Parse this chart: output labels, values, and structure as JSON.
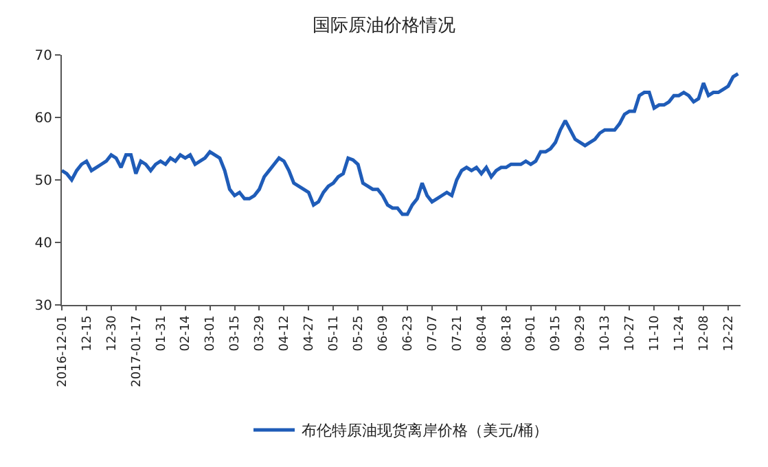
{
  "chart_data": {
    "type": "line",
    "title": "国际原油价格情况",
    "categories": [
      "2016-12-01",
      null,
      null,
      null,
      null,
      "12-15",
      null,
      null,
      null,
      null,
      "12-30",
      null,
      null,
      null,
      null,
      "2017-01-17",
      null,
      null,
      null,
      null,
      "01-31",
      null,
      null,
      null,
      null,
      "02-14",
      null,
      null,
      null,
      null,
      "03-01",
      null,
      null,
      null,
      null,
      "03-15",
      null,
      null,
      null,
      null,
      "03-29",
      null,
      null,
      null,
      null,
      "04-12",
      null,
      null,
      null,
      null,
      "04-27",
      null,
      null,
      null,
      null,
      "05-11",
      null,
      null,
      null,
      null,
      "05-25",
      null,
      null,
      null,
      null,
      "06-09",
      null,
      null,
      null,
      null,
      "06-23",
      null,
      null,
      null,
      null,
      "07-07",
      null,
      null,
      null,
      null,
      "07-21",
      null,
      null,
      null,
      null,
      "08-04",
      null,
      null,
      null,
      null,
      "08-18",
      null,
      null,
      null,
      null,
      "09-01",
      null,
      null,
      null,
      null,
      "09-15",
      null,
      null,
      null,
      null,
      "09-29",
      null,
      null,
      null,
      null,
      "10-13",
      null,
      null,
      null,
      null,
      "10-27",
      null,
      null,
      null,
      null,
      "11-10",
      null,
      null,
      null,
      null,
      "11-24",
      null,
      null,
      null,
      null,
      "12-08",
      null,
      null,
      null,
      null,
      "12-22",
      null,
      null
    ],
    "series": [
      {
        "name": "布伦特原油现货离岸价格（美元/桶）",
        "color": "#1f5cb8",
        "values": [
          51.5,
          51,
          50,
          51.5,
          52.5,
          53,
          51.5,
          52,
          52.5,
          53,
          54,
          53.5,
          52,
          54,
          54,
          51,
          53,
          52.5,
          51.5,
          52.5,
          53,
          52.5,
          53.5,
          53,
          54,
          53.5,
          54,
          52.5,
          53,
          53.5,
          54.5,
          54,
          53.5,
          51.5,
          48.5,
          47.5,
          48,
          47,
          47,
          47.5,
          48.5,
          50.5,
          51.5,
          52.5,
          53.5,
          53,
          51.5,
          49.5,
          49,
          48.5,
          48,
          46,
          46.5,
          48,
          49,
          49.5,
          50.5,
          51,
          53.5,
          53.2,
          52.5,
          49.5,
          49,
          48.5,
          48.5,
          47.5,
          46,
          45.5,
          45.5,
          44.5,
          44.5,
          46,
          47,
          49.5,
          47.5,
          46.5,
          47,
          47.5,
          48,
          47.5,
          50,
          51.5,
          52,
          51.5,
          52,
          51,
          52,
          50.5,
          51.5,
          52,
          52,
          52.5,
          52.5,
          52.5,
          53,
          52.5,
          53,
          54.5,
          54.5,
          55,
          56,
          58,
          59.5,
          58,
          56.5,
          56,
          55.5,
          56,
          56.5,
          57.5,
          58,
          58,
          58,
          59,
          60.5,
          61,
          61,
          63.5,
          64,
          64,
          61.5,
          62,
          62,
          62.5,
          63.5,
          63.5,
          64,
          63.5,
          62.5,
          63,
          65.5,
          63.5,
          64,
          64,
          64.5,
          65,
          66.5,
          67
        ]
      }
    ],
    "ylim": [
      30,
      70
    ],
    "yticks": [
      30,
      40,
      50,
      60,
      70
    ],
    "legend": "bottom"
  }
}
